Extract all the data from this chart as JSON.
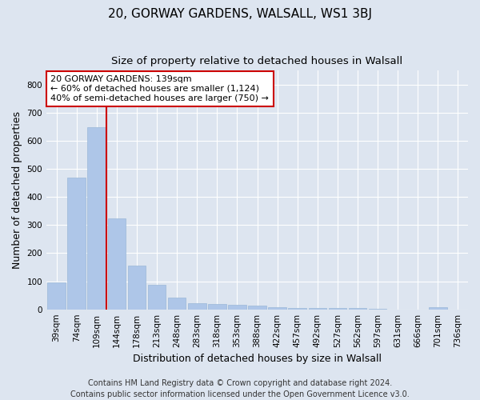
{
  "title": "20, GORWAY GARDENS, WALSALL, WS1 3BJ",
  "subtitle": "Size of property relative to detached houses in Walsall",
  "xlabel": "Distribution of detached houses by size in Walsall",
  "ylabel": "Number of detached properties",
  "categories": [
    "39sqm",
    "74sqm",
    "109sqm",
    "144sqm",
    "178sqm",
    "213sqm",
    "248sqm",
    "283sqm",
    "318sqm",
    "353sqm",
    "388sqm",
    "422sqm",
    "457sqm",
    "492sqm",
    "527sqm",
    "562sqm",
    "597sqm",
    "631sqm",
    "666sqm",
    "701sqm",
    "736sqm"
  ],
  "values": [
    95,
    468,
    648,
    323,
    157,
    87,
    43,
    22,
    18,
    17,
    13,
    9,
    6,
    5,
    4,
    4,
    3,
    0,
    0,
    8,
    0
  ],
  "bar_color": "#aec6e8",
  "bar_edge_color": "#9ab8d8",
  "vline_x": 2.5,
  "vline_color": "#cc0000",
  "annotation_text": "20 GORWAY GARDENS: 139sqm\n← 60% of detached houses are smaller (1,124)\n40% of semi-detached houses are larger (750) →",
  "annotation_box_facecolor": "#ffffff",
  "annotation_box_edgecolor": "#cc0000",
  "ylim": [
    0,
    850
  ],
  "yticks": [
    0,
    100,
    200,
    300,
    400,
    500,
    600,
    700,
    800
  ],
  "footer": "Contains HM Land Registry data © Crown copyright and database right 2024.\nContains public sector information licensed under the Open Government Licence v3.0.",
  "bg_color": "#dde5f0",
  "plot_bg_color": "#dde5f0",
  "grid_color": "#ffffff",
  "title_fontsize": 11,
  "subtitle_fontsize": 9.5,
  "axis_label_fontsize": 9,
  "tick_fontsize": 7.5,
  "footer_fontsize": 7,
  "annot_fontsize": 8
}
